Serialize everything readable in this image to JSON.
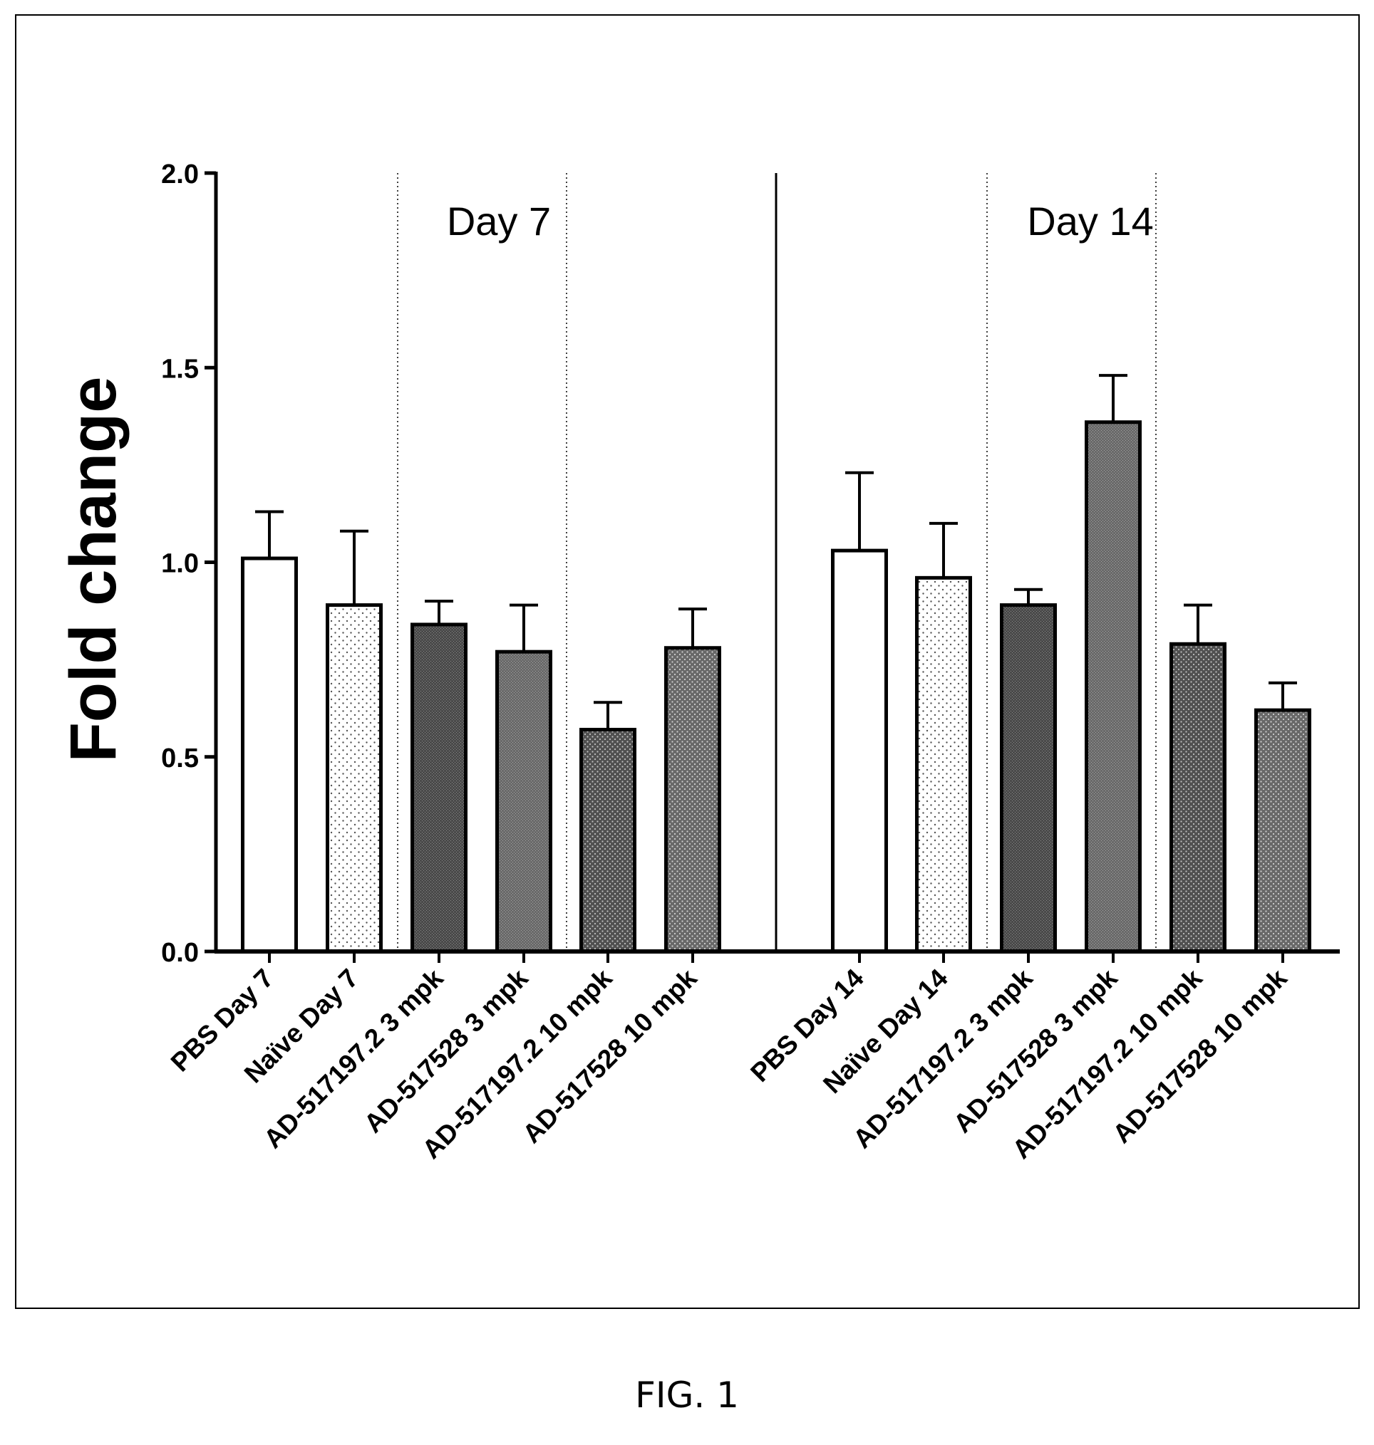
{
  "figure": {
    "caption": "FIG. 1"
  },
  "chart_data": {
    "type": "bar",
    "ylabel": "Fold change",
    "ylim": [
      0,
      2.0
    ],
    "yticks": [
      "0.0",
      "0.5",
      "1.0",
      "1.5",
      "2.0"
    ],
    "panels": [
      {
        "label": "Day 7",
        "categories": [
          "PBS Day 7",
          "Naïve Day 7",
          "AD-517197.2 3 mpk",
          "AD-517528 3 mpk",
          "AD-517197.2 10 mpk",
          "AD-517528 10 mpk"
        ],
        "values": [
          1.01,
          0.89,
          0.84,
          0.77,
          0.57,
          0.78
        ],
        "error_upper": [
          1.13,
          1.08,
          0.9,
          0.89,
          0.64,
          0.88
        ]
      },
      {
        "label": "Day 14",
        "categories": [
          "PBS Day 14",
          "Naïve Day 14",
          "AD-517197.2 3 mpk",
          "AD-517528 3 mpk",
          "AD-517197.2 10 mpk",
          "AD-517528 10 mpk"
        ],
        "values": [
          1.03,
          0.96,
          0.89,
          1.36,
          0.79,
          0.62
        ],
        "error_upper": [
          1.23,
          1.1,
          0.93,
          1.48,
          0.89,
          0.69
        ]
      }
    ],
    "bar_styles": [
      {
        "fill": "#ffffff",
        "pattern": "none"
      },
      {
        "fill": "#ffffff",
        "pattern": "sparse-dots"
      },
      {
        "fill": "#4d4d4d",
        "pattern": "fine-texture"
      },
      {
        "fill": "#6e6e6e",
        "pattern": "fine-texture"
      },
      {
        "fill": "#555555",
        "pattern": "dots"
      },
      {
        "fill": "#6a6a6a",
        "pattern": "dots"
      }
    ],
    "grid": false,
    "legend": "none"
  }
}
